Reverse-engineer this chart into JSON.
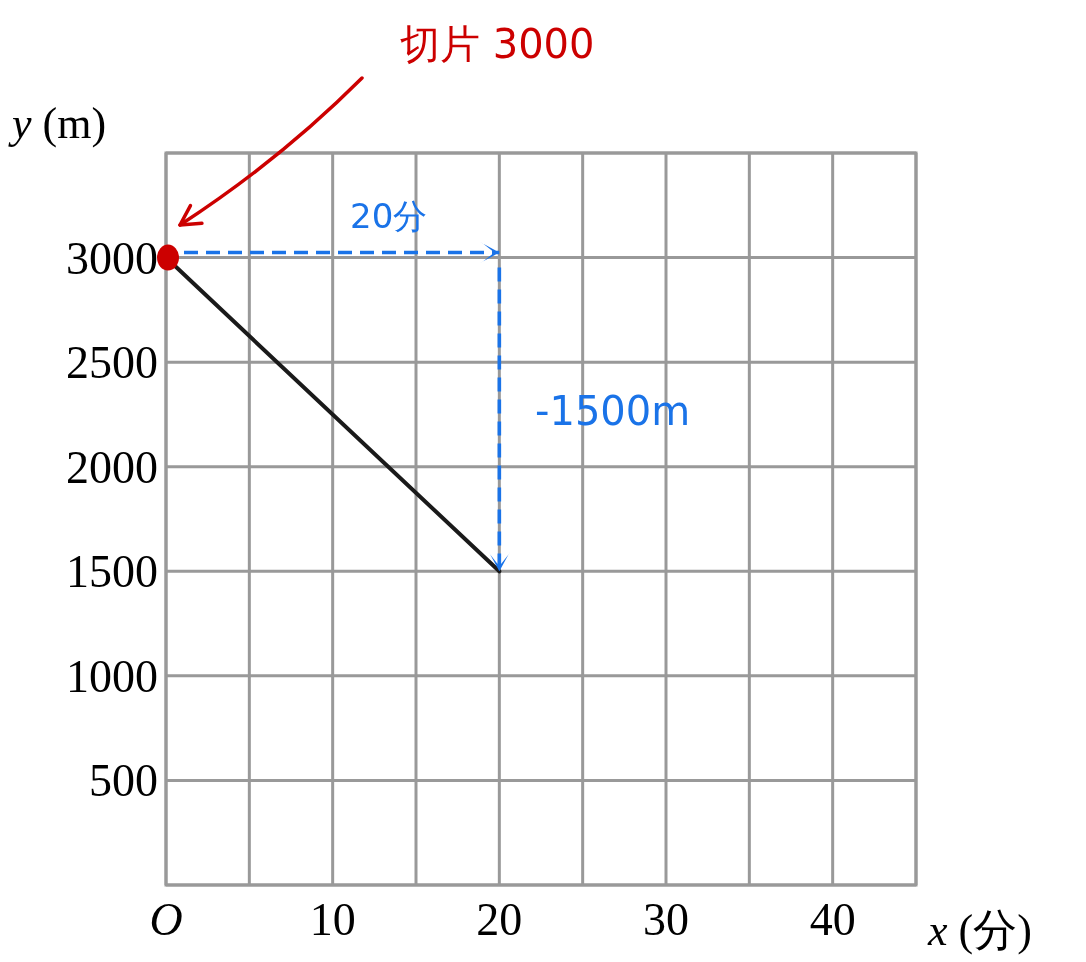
{
  "chart_data": {
    "type": "line",
    "xlabel": "*x* (分)",
    "ylabel": "*y* (m)",
    "x": [
      0,
      20
    ],
    "series": [
      {
        "color": "#1a1a1a",
        "values": [
          3000,
          1500
        ]
      },
      {
        "type": "scatter",
        "color": "#cc0000",
        "x": [
          0
        ],
        "values": [
          3000
        ]
      }
    ],
    "xlim": [
      0,
      45
    ],
    "ylim": [
      0,
      3500
    ],
    "xticks": [
      {
        "value": 0,
        "label": "O"
      },
      {
        "value": 5,
        "label": null
      },
      10,
      {
        "value": 15,
        "label": null
      },
      20,
      {
        "value": 25,
        "label": null
      },
      30,
      {
        "value": 35,
        "label": null
      },
      40,
      {
        "value": 45,
        "label": null
      }
    ],
    "yticks": [
      {
        "value": 0,
        "label": null
      },
      500,
      1000,
      1500,
      2000,
      2500,
      3000,
      {
        "value": 3500,
        "label": null
      }
    ],
    "grid": true,
    "annotations": [
      "切片 3000",
      "20分",
      "-1500m"
    ]
  }
}
